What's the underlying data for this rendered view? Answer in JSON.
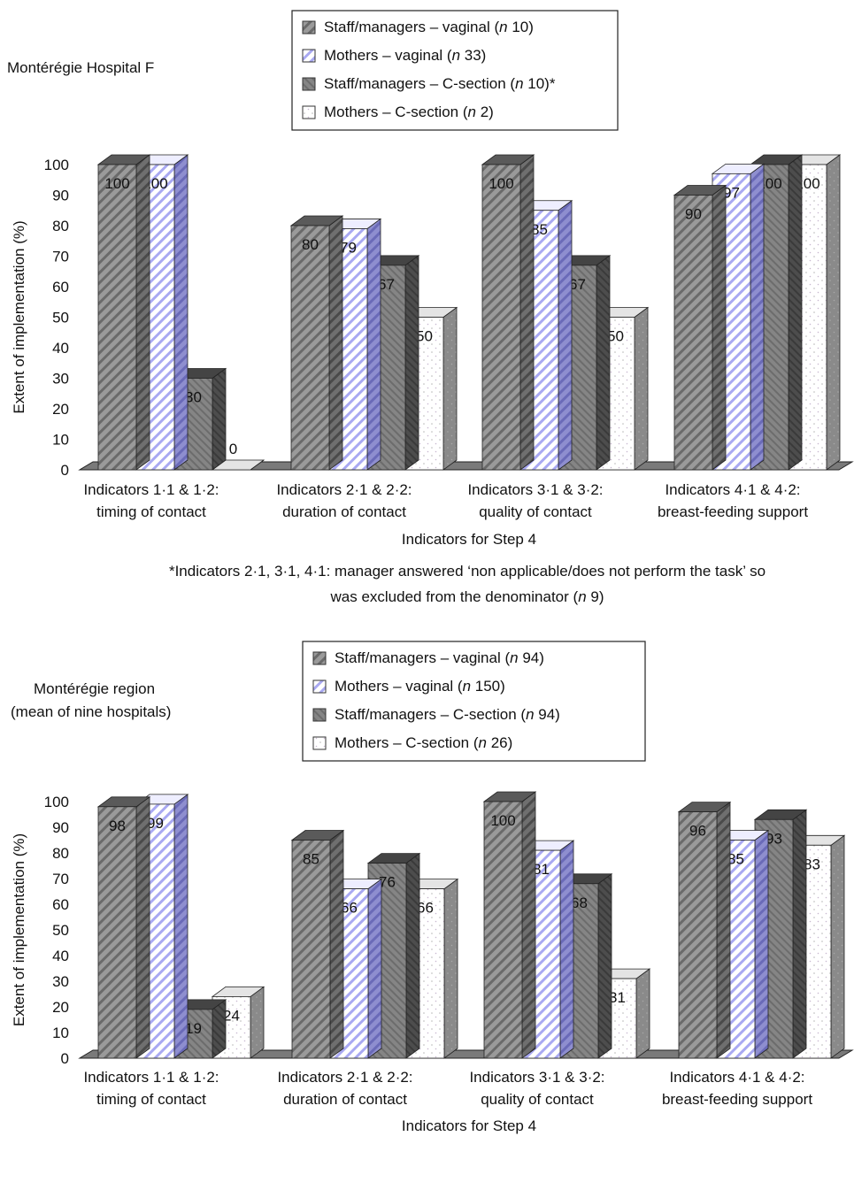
{
  "chart_data": [
    {
      "type": "bar",
      "title": "Montérégie Hospital F",
      "xlabel": "Indicators for Step 4",
      "ylabel": "Extent of implementation (%)",
      "ylim": [
        0,
        100
      ],
      "yticks": [
        "0",
        "10",
        "20",
        "30",
        "40",
        "50",
        "60",
        "70",
        "80",
        "90",
        "100"
      ],
      "categories": [
        [
          "Indicators 1·1 & 1·2:",
          "timing of contact"
        ],
        [
          "Indicators 2·1 & 2·2:",
          "duration of contact"
        ],
        [
          "Indicators 3·1 & 3·2:",
          "quality of contact"
        ],
        [
          "Indicators 4·1 & 4·2:",
          "breast-feeding support"
        ]
      ],
      "legend": [
        {
          "text": "Staff/managers – vaginal (",
          "n": "n",
          "rest": " 10)"
        },
        {
          "text": "Mothers – vaginal (",
          "n": "n",
          "rest": " 33)"
        },
        {
          "text": "Staff/managers – C-section (",
          "n": "n",
          "rest": " 10)*"
        },
        {
          "text": "Mothers – C-section (",
          "n": "n",
          "rest": " 2)"
        }
      ],
      "series": [
        {
          "name": "Staff/managers – vaginal",
          "values": [
            100,
            80,
            100,
            90
          ],
          "labels": [
            "100",
            "80",
            "100",
            "90"
          ]
        },
        {
          "name": "Mothers – vaginal",
          "values": [
            100,
            79,
            85,
            97
          ],
          "labels": [
            "100",
            "79",
            "85",
            "97"
          ]
        },
        {
          "name": "Staff/managers – C-section",
          "values": [
            30,
            67,
            67,
            100
          ],
          "labels": [
            "30",
            "67",
            "67",
            "100"
          ]
        },
        {
          "name": "Mothers – C-section",
          "values": [
            0,
            50,
            50,
            100
          ],
          "labels": [
            "0",
            "50",
            "50",
            "100"
          ]
        }
      ],
      "label_color": [
        "#111111",
        "#111111",
        "#111111",
        "#111111"
      ],
      "footnote": [
        "*Indicators 2·1, 3·1, 4·1: manager answered ‘non applicable/does not perform the task’ so",
        {
          "pre": "was excluded from the denominator (",
          "n": "n",
          "post": " 9)"
        }
      ]
    },
    {
      "type": "bar",
      "title": [
        "Montérégie region",
        "(mean of nine hospitals)"
      ],
      "xlabel": "Indicators for Step 4",
      "ylabel": "Extent of implementation (%)",
      "ylim": [
        0,
        100
      ],
      "yticks": [
        "0",
        "10",
        "20",
        "30",
        "40",
        "50",
        "60",
        "70",
        "80",
        "90",
        "100"
      ],
      "categories": [
        [
          "Indicators 1·1 & 1·2:",
          "timing of contact"
        ],
        [
          "Indicators 2·1 & 2·2:",
          "duration of contact"
        ],
        [
          "Indicators 3·1 & 3·2:",
          "quality of contact"
        ],
        [
          "Indicators 4·1 & 4·2:",
          "breast-feeding support"
        ]
      ],
      "legend": [
        {
          "text": "Staff/managers – vaginal (",
          "n": "n",
          "rest": " 94)"
        },
        {
          "text": "Mothers – vaginal (",
          "n": "n",
          "rest": " 150)"
        },
        {
          "text": "Staff/managers – C-section (",
          "n": "n",
          "rest": " 94)"
        },
        {
          "text": "Mothers – C-section (",
          "n": "n",
          "rest": " 26)"
        }
      ],
      "series": [
        {
          "name": "Staff/managers – vaginal",
          "values": [
            98,
            85,
            100,
            96
          ],
          "labels": [
            "98",
            "85",
            "100",
            "96"
          ]
        },
        {
          "name": "Mothers – vaginal",
          "values": [
            99,
            66,
            81,
            85
          ],
          "labels": [
            "99",
            "66",
            "81",
            "85"
          ]
        },
        {
          "name": "Staff/managers – C-section",
          "values": [
            19,
            76,
            68,
            93
          ],
          "labels": [
            "19",
            "76",
            "68",
            "93"
          ]
        },
        {
          "name": "Mothers – C-section",
          "values": [
            24,
            66,
            31,
            83
          ],
          "labels": [
            "24",
            "66",
            "31",
            "83"
          ]
        }
      ],
      "label_color": [
        "#1a1a8c",
        "#1a1a8c",
        "#111111",
        "#111111"
      ],
      "footnote": []
    }
  ],
  "colors": {
    "staff_vaginal": "#8c8c8c",
    "mothers_vaginal_stripe": "#7a7ae0",
    "staff_csection": "#7a7a7a",
    "mothers_csection_dot": "#b0b0b0",
    "floor": "#6e6e6e"
  }
}
